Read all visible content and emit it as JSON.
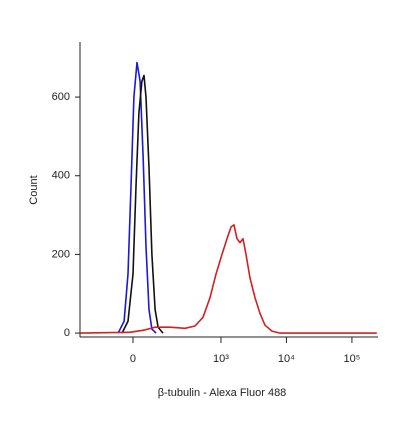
{
  "chart_data": {
    "type": "line",
    "xlabel": "β-tubulin - Alexa Fluor 488",
    "ylabel": "Count",
    "xscale": "biexponential",
    "xscale_width": 91,
    "xlim": [
      -286,
      250000
    ],
    "xticks": [
      0,
      {
        "value": 1000,
        "label": "10³"
      },
      {
        "value": 10000,
        "label": "10⁴"
      },
      {
        "value": 100000,
        "label": "10⁵"
      }
    ],
    "ylim": [
      -10,
      740
    ],
    "yticks": [
      0,
      200,
      400,
      600
    ],
    "series": [
      {
        "color": "#1a1ad6",
        "x": [
          -50,
          -29,
          -16,
          -6,
          3,
          13,
          23,
          33,
          43,
          54,
          65,
          82
        ],
        "values": [
          0,
          30,
          150,
          380,
          600,
          688,
          640,
          450,
          220,
          60,
          10,
          0
        ]
      },
      {
        "color": "#111111",
        "x": [
          -36,
          -16,
          0,
          10,
          19,
          29,
          36,
          43,
          54,
          65,
          78,
          91,
          115
        ],
        "values": [
          0,
          30,
          150,
          380,
          560,
          640,
          655,
          600,
          420,
          200,
          60,
          15,
          0
        ]
      },
      {
        "color": "#d42020",
        "x": [
          -280,
          -10,
          40,
          78,
          155,
          276,
          397,
          529,
          678,
          839,
          1038,
          1238,
          1429,
          1585,
          1760,
          1955,
          2175,
          2415,
          2777,
          3309,
          3945,
          4710,
          6027,
          7980,
          240000
        ],
        "values": [
          0,
          2,
          8,
          15,
          15,
          12,
          18,
          40,
          90,
          150,
          200,
          240,
          270,
          275,
          240,
          230,
          240,
          200,
          140,
          90,
          50,
          20,
          5,
          0,
          0
        ]
      }
    ]
  }
}
